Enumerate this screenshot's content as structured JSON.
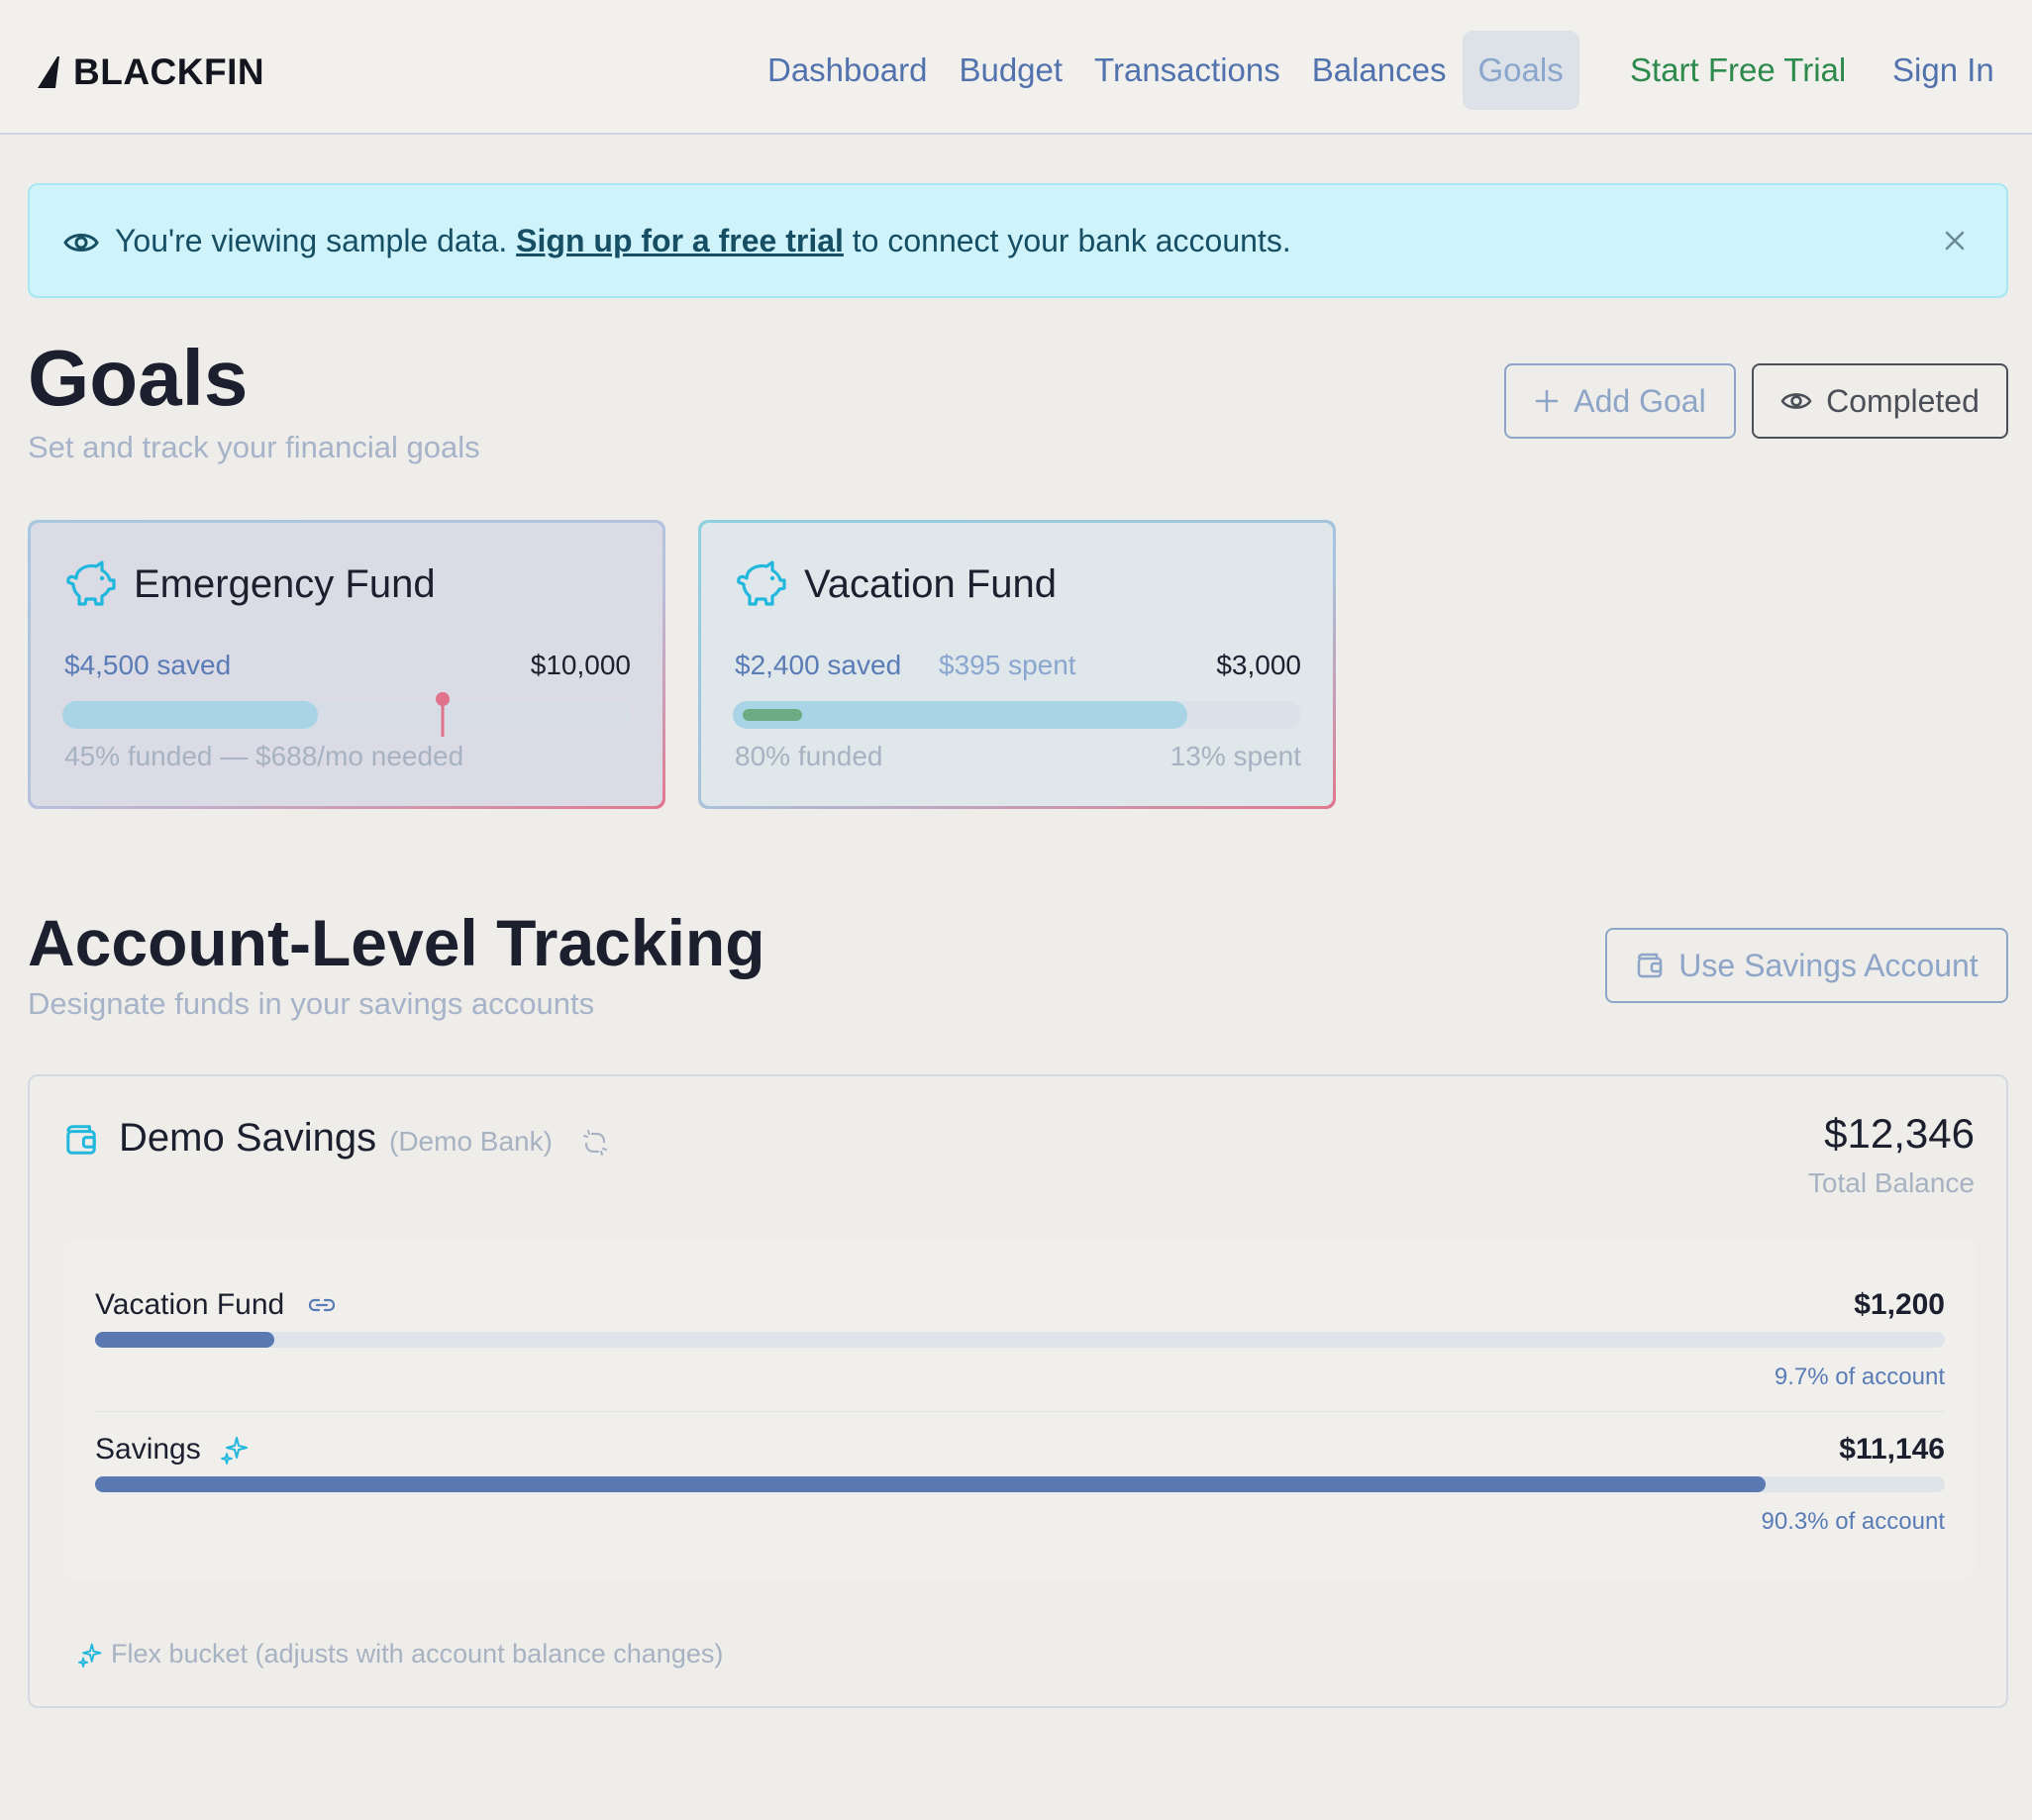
{
  "brand": {
    "name": "BLACKFIN"
  },
  "nav": {
    "items": [
      {
        "label": "Dashboard"
      },
      {
        "label": "Budget"
      },
      {
        "label": "Transactions"
      },
      {
        "label": "Balances"
      },
      {
        "label": "Goals",
        "active": true
      }
    ],
    "trial_label": "Start Free Trial",
    "signin_label": "Sign In"
  },
  "banner": {
    "prefix": "You're viewing sample data. ",
    "link": "Sign up for a free trial",
    "suffix": " to connect your bank accounts."
  },
  "goals": {
    "title": "Goals",
    "subtitle": "Set and track your financial goals",
    "add_label": "Add Goal",
    "completed_label": "Completed",
    "cards": [
      {
        "name": "Emergency Fund",
        "saved": "$4,500 saved",
        "target": "$10,000",
        "funded_fraction": 0.45,
        "foot_left": "45% funded — $688/mo needed",
        "icon": "piggy-bank-icon"
      },
      {
        "name": "Vacation Fund",
        "saved": "$2,400 saved",
        "spent": "$395 spent",
        "target": "$3,000",
        "funded_fraction": 0.8,
        "spent_fraction": 0.13,
        "foot_left": "80% funded",
        "foot_right": "13% spent",
        "icon": "piggy-bank-icon"
      }
    ]
  },
  "account_tracking": {
    "title": "Account-Level Tracking",
    "subtitle": "Designate funds in your savings accounts",
    "use_label": "Use Savings Account",
    "account": {
      "name": "Demo Savings",
      "bank": "(Demo Bank)",
      "balance": "$12,346",
      "balance_label": "Total Balance",
      "buckets": [
        {
          "name": "Vacation Fund",
          "amount": "$1,200",
          "fraction": 0.097,
          "pct_label": "9.7% of account",
          "icon": "link-icon"
        },
        {
          "name": "Savings",
          "amount": "$11,146",
          "fraction": 0.903,
          "pct_label": "90.3% of account",
          "icon": "sparkles-icon"
        }
      ],
      "flex_note": "Flex bucket (adjusts with account balance changes)"
    }
  },
  "colors": {
    "nav_link": "#5272ad",
    "trial": "#2d8a4c",
    "banner_bg": "#cff3fa",
    "progress": "#5a79b3",
    "pin": "#e0738b"
  }
}
